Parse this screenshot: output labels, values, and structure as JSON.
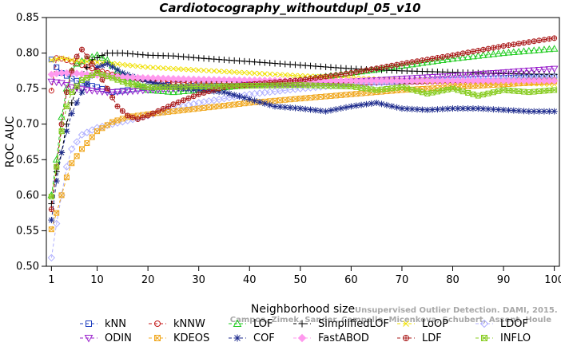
{
  "chart_data": {
    "type": "line",
    "title": "Cardiotocography_withoutdupl_05_v10",
    "xlabel": "Neighborhood size",
    "ylabel": "ROC AUC",
    "xlim": [
      0,
      101
    ],
    "ylim": [
      0.5,
      0.85
    ],
    "xticks": [
      1,
      10,
      20,
      30,
      40,
      50,
      60,
      70,
      80,
      90,
      100
    ],
    "yticks": [
      0.5,
      0.55,
      0.6,
      0.65,
      0.7,
      0.75,
      0.8,
      0.85
    ],
    "ytick_labels": [
      "0.50",
      "0.55",
      "0.60",
      "0.65",
      "0.70",
      "0.75",
      "0.80",
      "0.85"
    ],
    "grid": false,
    "legend_position": "bottom",
    "credit_text": [
      "Unsupervised Outlier Detection. DAMI, 2015.",
      "Campos, Zimek, Sander, Campello, Micenkova, Schubert, Assent, Houle"
    ],
    "series": [
      {
        "name": "kNN",
        "color": "#1f3fbf",
        "marker": "square",
        "dash": "dash",
        "points": [
          [
            1,
            0.791
          ],
          [
            2,
            0.78
          ],
          [
            3,
            0.772
          ],
          [
            4,
            0.768
          ],
          [
            5,
            0.764
          ],
          [
            7,
            0.758
          ],
          [
            10,
            0.752
          ],
          [
            13,
            0.745
          ],
          [
            16,
            0.748
          ],
          [
            20,
            0.752
          ],
          [
            25,
            0.756
          ],
          [
            30,
            0.758
          ],
          [
            40,
            0.757
          ],
          [
            50,
            0.757
          ],
          [
            60,
            0.758
          ],
          [
            70,
            0.76
          ],
          [
            80,
            0.762
          ],
          [
            90,
            0.765
          ],
          [
            100,
            0.767
          ]
        ]
      },
      {
        "name": "kNNW",
        "color": "#c41a1a",
        "marker": "circle",
        "dash": "dash",
        "points": [
          [
            1,
            0.747
          ],
          [
            2,
            0.793
          ],
          [
            3,
            0.792
          ],
          [
            4,
            0.79
          ],
          [
            5,
            0.788
          ],
          [
            7,
            0.783
          ],
          [
            10,
            0.776
          ],
          [
            13,
            0.77
          ],
          [
            16,
            0.765
          ],
          [
            20,
            0.762
          ],
          [
            25,
            0.759
          ],
          [
            30,
            0.758
          ],
          [
            40,
            0.757
          ],
          [
            50,
            0.757
          ],
          [
            60,
            0.758
          ],
          [
            70,
            0.759
          ],
          [
            80,
            0.76
          ],
          [
            90,
            0.761
          ],
          [
            100,
            0.762
          ]
        ]
      },
      {
        "name": "LOF",
        "color": "#22cc22",
        "marker": "triangle-up",
        "dash": "dash",
        "points": [
          [
            1,
            0.6
          ],
          [
            2,
            0.65
          ],
          [
            3,
            0.71
          ],
          [
            4,
            0.75
          ],
          [
            5,
            0.775
          ],
          [
            6,
            0.785
          ],
          [
            8,
            0.792
          ],
          [
            10,
            0.797
          ],
          [
            12,
            0.79
          ],
          [
            14,
            0.775
          ],
          [
            17,
            0.76
          ],
          [
            20,
            0.748
          ],
          [
            25,
            0.745
          ],
          [
            30,
            0.748
          ],
          [
            40,
            0.755
          ],
          [
            50,
            0.762
          ],
          [
            60,
            0.772
          ],
          [
            70,
            0.782
          ],
          [
            80,
            0.792
          ],
          [
            90,
            0.8
          ],
          [
            100,
            0.806
          ]
        ]
      },
      {
        "name": "SimplifiedLOF",
        "color": "#000000",
        "marker": "plus",
        "dash": "dash",
        "points": [
          [
            1,
            0.588
          ],
          [
            2,
            0.633
          ],
          [
            3,
            0.66
          ],
          [
            4,
            0.7
          ],
          [
            5,
            0.73
          ],
          [
            7,
            0.77
          ],
          [
            9,
            0.79
          ],
          [
            12,
            0.8
          ],
          [
            15,
            0.8
          ],
          [
            20,
            0.797
          ],
          [
            25,
            0.796
          ],
          [
            30,
            0.793
          ],
          [
            40,
            0.788
          ],
          [
            50,
            0.783
          ],
          [
            60,
            0.778
          ],
          [
            70,
            0.775
          ],
          [
            80,
            0.773
          ],
          [
            90,
            0.771
          ],
          [
            100,
            0.77
          ]
        ]
      },
      {
        "name": "LoOP",
        "color": "#f0e000",
        "marker": "cross",
        "dash": "dash",
        "points": [
          [
            1,
            0.79
          ],
          [
            3,
            0.793
          ],
          [
            5,
            0.79
          ],
          [
            8,
            0.788
          ],
          [
            12,
            0.786
          ],
          [
            16,
            0.783
          ],
          [
            20,
            0.78
          ],
          [
            25,
            0.778
          ],
          [
            30,
            0.776
          ],
          [
            40,
            0.772
          ],
          [
            50,
            0.768
          ],
          [
            60,
            0.765
          ],
          [
            70,
            0.762
          ],
          [
            80,
            0.76
          ],
          [
            90,
            0.758
          ],
          [
            100,
            0.756
          ]
        ]
      },
      {
        "name": "LDOF",
        "color": "#b0b0ff",
        "marker": "diamond",
        "dash": "dash",
        "points": [
          [
            1,
            0.512
          ],
          [
            2,
            0.56
          ],
          [
            3,
            0.6
          ],
          [
            4,
            0.64
          ],
          [
            5,
            0.665
          ],
          [
            7,
            0.685
          ],
          [
            10,
            0.695
          ],
          [
            13,
            0.7
          ],
          [
            16,
            0.705
          ],
          [
            20,
            0.712
          ],
          [
            25,
            0.722
          ],
          [
            30,
            0.73
          ],
          [
            40,
            0.742
          ],
          [
            50,
            0.75
          ],
          [
            60,
            0.756
          ],
          [
            70,
            0.76
          ],
          [
            80,
            0.763
          ],
          [
            90,
            0.765
          ],
          [
            100,
            0.766
          ]
        ]
      },
      {
        "name": "ODIN",
        "color": "#9a22cc",
        "marker": "triangle-down",
        "dash": "dash",
        "points": [
          [
            1,
            0.76
          ],
          [
            3,
            0.758
          ],
          [
            5,
            0.752
          ],
          [
            8,
            0.748
          ],
          [
            12,
            0.745
          ],
          [
            16,
            0.746
          ],
          [
            20,
            0.748
          ],
          [
            25,
            0.75
          ],
          [
            30,
            0.752
          ],
          [
            40,
            0.755
          ],
          [
            50,
            0.757
          ],
          [
            60,
            0.76
          ],
          [
            70,
            0.764
          ],
          [
            80,
            0.768
          ],
          [
            90,
            0.773
          ],
          [
            100,
            0.778
          ]
        ]
      },
      {
        "name": "KDEOS",
        "color": "#f0a820",
        "marker": "square-x",
        "dash": "dash",
        "points": [
          [
            1,
            0.552
          ],
          [
            2,
            0.575
          ],
          [
            3,
            0.6
          ],
          [
            4,
            0.625
          ],
          [
            5,
            0.645
          ],
          [
            7,
            0.665
          ],
          [
            10,
            0.69
          ],
          [
            13,
            0.703
          ],
          [
            16,
            0.71
          ],
          [
            20,
            0.714
          ],
          [
            25,
            0.718
          ],
          [
            30,
            0.722
          ],
          [
            40,
            0.73
          ],
          [
            50,
            0.736
          ],
          [
            60,
            0.742
          ],
          [
            70,
            0.748
          ],
          [
            80,
            0.752
          ],
          [
            90,
            0.756
          ],
          [
            100,
            0.76
          ]
        ]
      },
      {
        "name": "COF",
        "color": "#1c2a8c",
        "marker": "asterisk",
        "dash": "dash",
        "points": [
          [
            1,
            0.565
          ],
          [
            2,
            0.62
          ],
          [
            3,
            0.66
          ],
          [
            4,
            0.69
          ],
          [
            5,
            0.715
          ],
          [
            7,
            0.745
          ],
          [
            10,
            0.78
          ],
          [
            12,
            0.785
          ],
          [
            15,
            0.772
          ],
          [
            20,
            0.76
          ],
          [
            25,
            0.752
          ],
          [
            30,
            0.748
          ],
          [
            35,
            0.745
          ],
          [
            40,
            0.735
          ],
          [
            45,
            0.725
          ],
          [
            50,
            0.722
          ],
          [
            55,
            0.718
          ],
          [
            60,
            0.725
          ],
          [
            65,
            0.73
          ],
          [
            70,
            0.722
          ],
          [
            75,
            0.72
          ],
          [
            80,
            0.722
          ],
          [
            85,
            0.722
          ],
          [
            90,
            0.72
          ],
          [
            95,
            0.718
          ],
          [
            100,
            0.718
          ]
        ]
      },
      {
        "name": "FastABOD",
        "color": "#ff99ee",
        "marker": "diamond-filled",
        "dash": "dash",
        "points": [
          [
            1,
            0.77
          ],
          [
            3,
            0.772
          ],
          [
            5,
            0.772
          ],
          [
            8,
            0.77
          ],
          [
            12,
            0.768
          ],
          [
            16,
            0.766
          ],
          [
            20,
            0.765
          ],
          [
            25,
            0.764
          ],
          [
            30,
            0.763
          ],
          [
            40,
            0.762
          ],
          [
            50,
            0.761
          ],
          [
            60,
            0.761
          ],
          [
            70,
            0.761
          ],
          [
            80,
            0.761
          ],
          [
            90,
            0.761
          ],
          [
            100,
            0.761
          ]
        ]
      },
      {
        "name": "LDF",
        "color": "#aa1a1a",
        "marker": "circle-plus",
        "dash": "dash",
        "points": [
          [
            1,
            0.58
          ],
          [
            2,
            0.64
          ],
          [
            3,
            0.7
          ],
          [
            4,
            0.745
          ],
          [
            5,
            0.775
          ],
          [
            6,
            0.795
          ],
          [
            7,
            0.805
          ],
          [
            8,
            0.795
          ],
          [
            10,
            0.775
          ],
          [
            12,
            0.75
          ],
          [
            14,
            0.725
          ],
          [
            16,
            0.712
          ],
          [
            18,
            0.707
          ],
          [
            20,
            0.712
          ],
          [
            25,
            0.728
          ],
          [
            30,
            0.742
          ],
          [
            35,
            0.752
          ],
          [
            40,
            0.756
          ],
          [
            50,
            0.762
          ],
          [
            60,
            0.772
          ],
          [
            70,
            0.785
          ],
          [
            80,
            0.797
          ],
          [
            90,
            0.81
          ],
          [
            100,
            0.821
          ]
        ]
      },
      {
        "name": "INFLO",
        "color": "#88cc22",
        "marker": "square-cross",
        "dash": "dash",
        "points": [
          [
            1,
            0.598
          ],
          [
            2,
            0.64
          ],
          [
            3,
            0.69
          ],
          [
            4,
            0.725
          ],
          [
            5,
            0.745
          ],
          [
            7,
            0.762
          ],
          [
            10,
            0.772
          ],
          [
            13,
            0.765
          ],
          [
            16,
            0.757
          ],
          [
            20,
            0.752
          ],
          [
            25,
            0.752
          ],
          [
            30,
            0.753
          ],
          [
            40,
            0.754
          ],
          [
            50,
            0.755
          ],
          [
            60,
            0.753
          ],
          [
            65,
            0.748
          ],
          [
            70,
            0.752
          ],
          [
            75,
            0.743
          ],
          [
            80,
            0.75
          ],
          [
            85,
            0.74
          ],
          [
            90,
            0.748
          ],
          [
            95,
            0.745
          ],
          [
            100,
            0.748
          ]
        ]
      }
    ]
  }
}
